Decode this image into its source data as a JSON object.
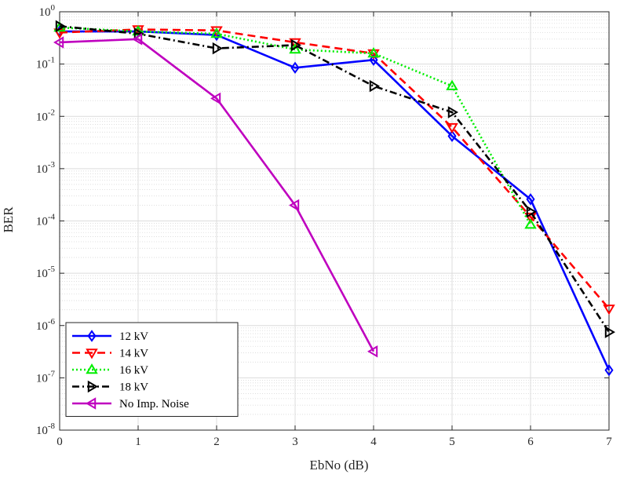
{
  "chart_data": {
    "type": "line",
    "xlabel": "EbNo (dB)",
    "ylabel": "BER",
    "xlim": [
      0,
      7
    ],
    "ylim": [
      1e-08,
      1
    ],
    "yscale": "log",
    "grid": true,
    "minor_grid": true,
    "legend_position": "bottom-left",
    "x_ticks": [
      "0",
      "1",
      "2",
      "3",
      "4",
      "5",
      "6",
      "7"
    ],
    "y_ticks": [
      {
        "base": "10",
        "exp": "0"
      },
      {
        "base": "10",
        "exp": "-1"
      },
      {
        "base": "10",
        "exp": "-2"
      },
      {
        "base": "10",
        "exp": "-3"
      },
      {
        "base": "10",
        "exp": "-4"
      },
      {
        "base": "10",
        "exp": "-5"
      },
      {
        "base": "10",
        "exp": "-6"
      },
      {
        "base": "10",
        "exp": "-7"
      },
      {
        "base": "10",
        "exp": "-8"
      }
    ],
    "series": [
      {
        "name": "12 kV",
        "color": "#0000ff",
        "dash": "solid",
        "marker": "diamond",
        "x": [
          0,
          1,
          2,
          3,
          4,
          5,
          6,
          7
        ],
        "y": [
          0.42,
          0.42,
          0.36,
          0.085,
          0.12,
          0.0042,
          0.00026,
          1.4e-07
        ]
      },
      {
        "name": "14 kV",
        "color": "#ff0000",
        "dash": "dashed",
        "marker": "triangle-down",
        "x": [
          0,
          1,
          2,
          3,
          4,
          5,
          6,
          7
        ],
        "y": [
          0.4,
          0.46,
          0.44,
          0.26,
          0.16,
          0.0062,
          0.00012,
          2.1e-06
        ]
      },
      {
        "name": "16 kV",
        "color": "#00ee00",
        "dash": "dotted",
        "marker": "triangle-up",
        "x": [
          0,
          1,
          2,
          3,
          4,
          5,
          6
        ],
        "y": [
          0.5,
          0.42,
          0.38,
          0.19,
          0.16,
          0.038,
          8.5e-05
        ]
      },
      {
        "name": "18 kV",
        "color": "#000000",
        "dash": "dashdot",
        "marker": "triangle-right",
        "x": [
          0,
          1,
          2,
          3,
          4,
          5,
          6,
          7
        ],
        "y": [
          0.53,
          0.38,
          0.2,
          0.23,
          0.038,
          0.012,
          0.00015,
          7.5e-07
        ]
      },
      {
        "name": "No Imp. Noise",
        "color": "#bf00bf",
        "dash": "solid",
        "marker": "triangle-left",
        "x": [
          0,
          1,
          2,
          3,
          4
        ],
        "y": [
          0.26,
          0.3,
          0.022,
          0.0002,
          3.2e-07
        ]
      }
    ]
  }
}
